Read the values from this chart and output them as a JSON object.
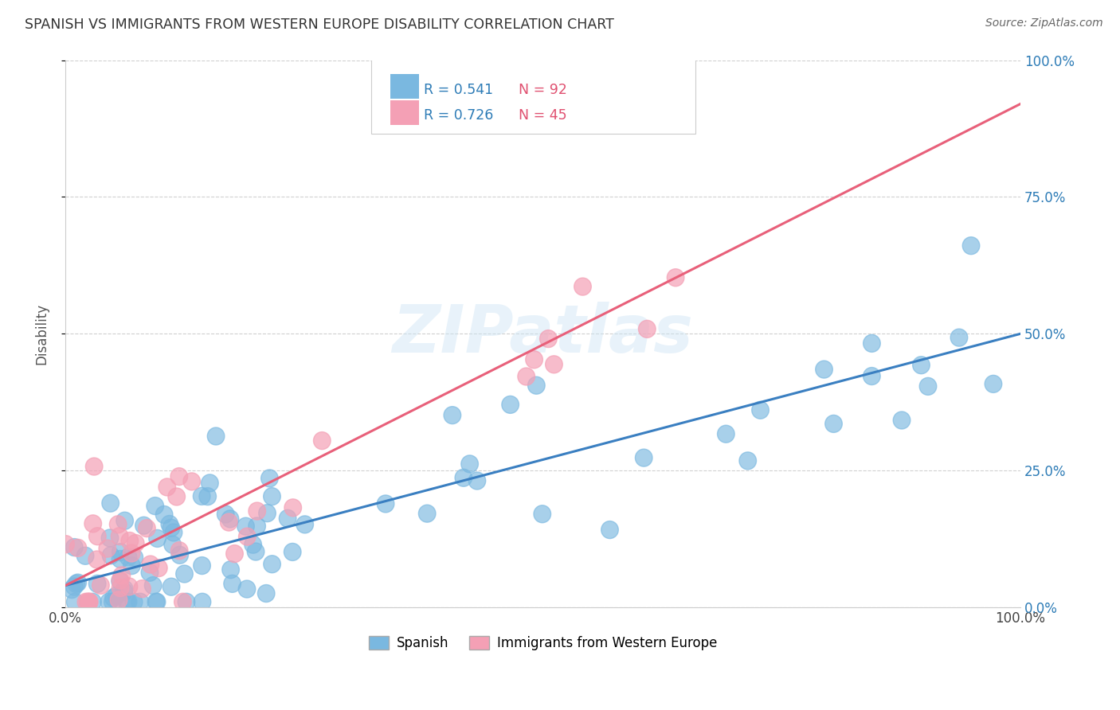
{
  "title": "SPANISH VS IMMIGRANTS FROM WESTERN EUROPE DISABILITY CORRELATION CHART",
  "source": "Source: ZipAtlas.com",
  "ylabel": "Disability",
  "watermark": "ZIPatlas",
  "ytick_values": [
    0.0,
    0.25,
    0.5,
    0.75,
    1.0
  ],
  "ytick_labels": [
    "0.0%",
    "25.0%",
    "50.0%",
    "75.0%",
    "100.0%"
  ],
  "blue_R": 0.541,
  "blue_N": 92,
  "pink_R": 0.726,
  "pink_N": 45,
  "blue_color": "#7ab8e0",
  "pink_color": "#f4a0b5",
  "blue_line_color": "#3a7fc1",
  "pink_line_color": "#e8607a",
  "blue_slope": 0.46,
  "blue_intercept": 0.04,
  "pink_slope": 0.88,
  "pink_intercept": 0.04,
  "legend_R_color": "#2c7bb6",
  "legend_N_color": "#e05070",
  "background_color": "#ffffff",
  "grid_color": "#d0d0d0",
  "title_color": "#333333",
  "source_color": "#666666"
}
